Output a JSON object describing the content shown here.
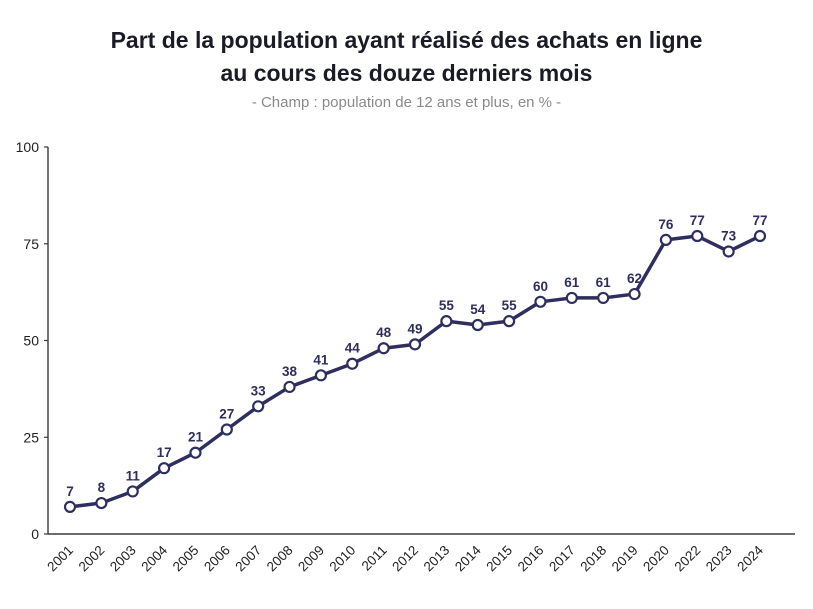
{
  "header": {
    "title_line1": "Part de la population ayant réalisé des achats en ligne",
    "title_line2": "au cours des douze derniers mois",
    "subtitle": "- Champ : population de 12 ans et plus, en % -"
  },
  "chart_data": {
    "type": "line",
    "title": "Part de la population ayant réalisé des achats en ligne au cours des douze derniers mois",
    "subtitle": "- Champ : population de 12 ans et plus, en % -",
    "categories": [
      "2001",
      "2002",
      "2003",
      "2004",
      "2005",
      "2006",
      "2007",
      "2008",
      "2009",
      "2010",
      "2011",
      "2012",
      "2013",
      "2014",
      "2015",
      "2016",
      "2017",
      "2018",
      "2019",
      "2020",
      "2022",
      "2023",
      "2024"
    ],
    "values": [
      7,
      8,
      11,
      17,
      21,
      27,
      33,
      38,
      41,
      44,
      48,
      49,
      55,
      54,
      55,
      60,
      61,
      61,
      62,
      76,
      77,
      73,
      77
    ],
    "xlabel": "",
    "ylabel": "",
    "ylim": [
      0,
      100
    ],
    "yticks": [
      0,
      25,
      50,
      75,
      100
    ],
    "grid": false,
    "legend": false,
    "data_labels": true,
    "marker": "open-circle",
    "colors": {
      "line": "#2e2e5f",
      "marker_fill": "#ffffff",
      "data_label": "#2e2e5f",
      "axis": "#3a3a3a",
      "tick_label": "#222222",
      "title": "#1b1b28",
      "subtitle": "#8a8a8a"
    }
  }
}
